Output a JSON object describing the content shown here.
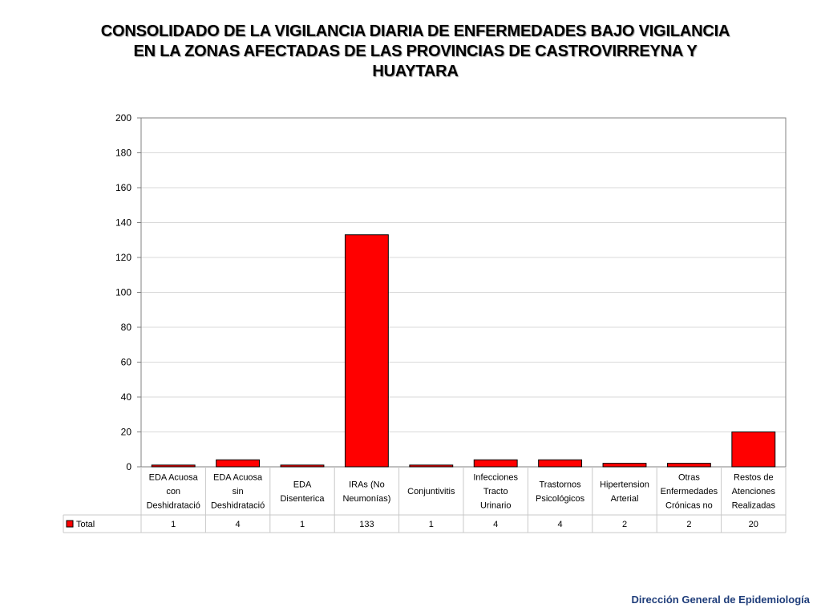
{
  "chart_data": {
    "type": "bar",
    "title": "CONSOLIDADO DE LA VIGILANCIA DIARIA DE ENFERMEDADES BAJO VIGILANCIA EN LA ZONAS AFECTADAS DE LAS PROVINCIAS DE CASTROVIRREYNA Y HUAYTARA",
    "categories": [
      [
        "EDA Acuosa",
        "con",
        "Deshidratació"
      ],
      [
        "EDA Acuosa",
        "sin",
        "Deshidratació"
      ],
      [
        "EDA",
        "Disenterica"
      ],
      [
        "IRAs (No",
        "Neumonías)"
      ],
      [
        "Conjuntivitis"
      ],
      [
        "Infecciones",
        "Tracto",
        "Urinario"
      ],
      [
        "Trastornos",
        "Psicológicos"
      ],
      [
        "Hipertension",
        "Arterial"
      ],
      [
        "Otras",
        "Enfermedades",
        "Crónicas no"
      ],
      [
        "Restos de",
        "Atenciones",
        "Realizadas"
      ]
    ],
    "series": [
      {
        "name": "Total",
        "values": [
          1,
          4,
          1,
          133,
          1,
          4,
          4,
          2,
          2,
          20
        ],
        "color": "#ff0000"
      }
    ],
    "ylim": [
      0,
      200
    ],
    "yticks": [
      0,
      20,
      40,
      60,
      80,
      100,
      120,
      140,
      160,
      180,
      200
    ],
    "grid": true,
    "legend": "data-table-left"
  },
  "footer": "Dirección General de Epidemiología"
}
